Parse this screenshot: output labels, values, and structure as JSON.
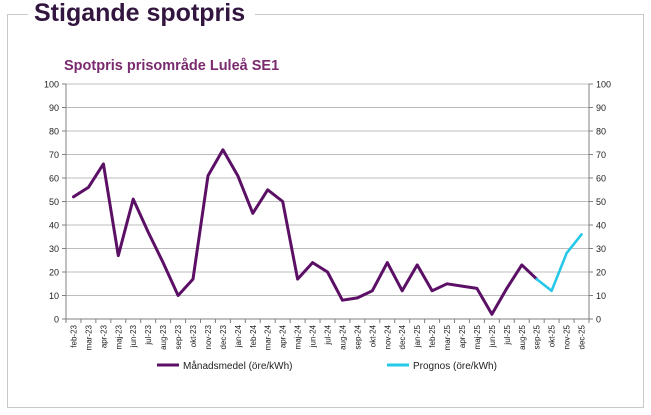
{
  "header": {
    "title": "Stigande spotpris"
  },
  "colors": {
    "actual": "#5b1066",
    "forecast": "#26c8e8",
    "title": "#7a2a6f",
    "grid": "#a6a6a6",
    "axis": "#808080"
  },
  "chart_data": {
    "type": "line",
    "title": "Spotpris prisområde Luleå SE1",
    "categories": [
      "feb-23",
      "mar-23",
      "apr-23",
      "maj-23",
      "jun-23",
      "jul-23",
      "aug-23",
      "sep-23",
      "okt-23",
      "nov-23",
      "dec-23",
      "jan-24",
      "feb-24",
      "mar-24",
      "apr-24",
      "maj-24",
      "jun-24",
      "jul-24",
      "aug-24",
      "sep-24",
      "okt-24",
      "nov-24",
      "dec-24",
      "jan-25",
      "feb-25",
      "mar-25",
      "apr-25",
      "maj-25",
      "jun-25",
      "jul-25",
      "aug-25",
      "sep-25",
      "okt-25",
      "nov-25",
      "dec-25"
    ],
    "series": [
      {
        "name": "Månadsmedel (öre/kWh)",
        "color": "#5b1066",
        "values": [
          52,
          56,
          66,
          27,
          51,
          37,
          24,
          10,
          17,
          61,
          72,
          61,
          45,
          55,
          50,
          17,
          24,
          20,
          8,
          9,
          12,
          24,
          12,
          23,
          12,
          15,
          14,
          13,
          2,
          13,
          23,
          17,
          null,
          null,
          null
        ]
      },
      {
        "name": "Prognos (öre/kWh)",
        "color": "#26c8e8",
        "values": [
          null,
          null,
          null,
          null,
          null,
          null,
          null,
          null,
          null,
          null,
          null,
          null,
          null,
          null,
          null,
          null,
          null,
          null,
          null,
          null,
          null,
          null,
          null,
          null,
          null,
          null,
          null,
          null,
          null,
          null,
          null,
          17,
          12,
          28,
          36
        ]
      }
    ],
    "ylim": [
      0,
      100
    ],
    "yticks": [
      0,
      10,
      20,
      30,
      40,
      50,
      60,
      70,
      80,
      90,
      100
    ],
    "secondary_axis": true,
    "grid": true,
    "legend": "bottom",
    "xlabel": "",
    "ylabel": ""
  }
}
